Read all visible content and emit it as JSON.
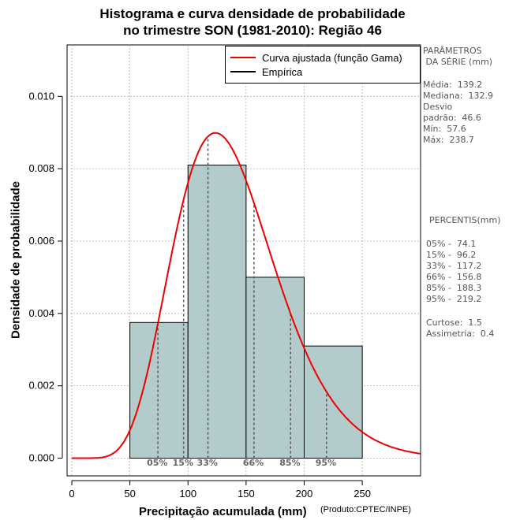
{
  "chart_data": {
    "type": "bar",
    "title_line1": "Histograma e curva densidade de probabilidade",
    "title_line2": "no trimestre SON (1981-2010): Região 46",
    "xlabel": "Precipitação acumulada (mm)",
    "ylabel": "Densidade de probabilidade",
    "credit": "(Produto:CPTEC/INPE)",
    "xlim": [
      0,
      300
    ],
    "ylim": [
      0,
      0.0113
    ],
    "x_ticks": [
      0,
      50,
      100,
      150,
      200,
      250
    ],
    "x_tick_labels": [
      "0",
      "50",
      "100",
      "150",
      "200",
      "250"
    ],
    "y_ticks": [
      0,
      0.002,
      0.004,
      0.006,
      0.008,
      0.01
    ],
    "y_tick_labels": [
      "0.000",
      "0.002",
      "0.004",
      "0.006",
      "0.008",
      "0.010"
    ],
    "bins": [
      {
        "from": 50,
        "to": 100,
        "density": 0.00375
      },
      {
        "from": 100,
        "to": 150,
        "density": 0.0081
      },
      {
        "from": 150,
        "to": 200,
        "density": 0.005
      },
      {
        "from": 200,
        "to": 250,
        "density": 0.0031
      }
    ],
    "gamma_fit": {
      "mean": 139.2,
      "sd": 46.6
    },
    "percentile_markers": [
      {
        "label": "05%",
        "value": 74.1
      },
      {
        "label": "15%",
        "value": 96.2
      },
      {
        "label": "33%",
        "value": 117.2
      },
      {
        "label": "66%",
        "value": 156.8
      },
      {
        "label": "85%",
        "value": 188.3
      },
      {
        "label": "95%",
        "value": 219.2
      }
    ],
    "legend": [
      {
        "label": "Curva ajustada (função Gama)",
        "color": "#ee0000"
      },
      {
        "label": "Empírica",
        "color": "#000000"
      }
    ],
    "colors": {
      "bar_fill": "#b3cccb",
      "curve": "#ee0000",
      "grid": "#b0b0b0"
    }
  },
  "side_panel": {
    "params_header": "PARÂMETROS\n DA SÉRIE (mm)",
    "stats": "Média:  139.2\nMediana:  132.9\nDesvio\npadrão:  46.6\nMín:  57.6\nMáx:  238.7",
    "percentis_header": "PERCENTIS(mm)",
    "percentis": "05% -  74.1\n15% -  96.2\n33% -  117.2\n66% -  156.8\n85% -  188.3\n95% -  219.2",
    "moments": "Curtose:  1.5\nAssimetria:  0.4"
  }
}
